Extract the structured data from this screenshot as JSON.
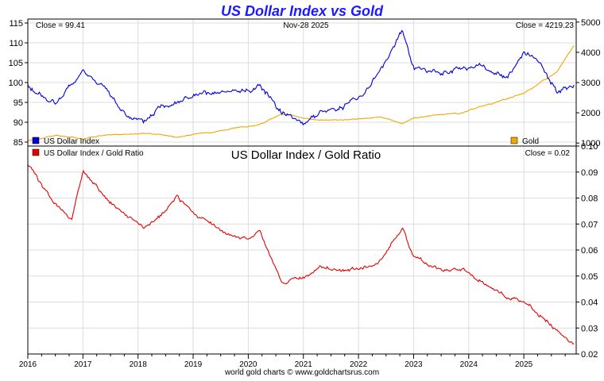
{
  "colors": {
    "title": "#1a1aff",
    "usd": "#0000dd",
    "gold": "#f0a800",
    "ratio": "#e60000",
    "grid": "#dcdcdc",
    "axis": "#000000"
  },
  "chart_data": [
    {
      "type": "line",
      "title": "US Dollar Index vs Gold",
      "date_label": "Nov-28  2025",
      "left_close_label": "Close = 99.41",
      "right_close_label": "Close = 4219.23",
      "x": [
        2016.0,
        2016.5,
        2017.0,
        2017.3,
        2017.7,
        2018.1,
        2018.4,
        2018.7,
        2019.0,
        2019.5,
        2020.0,
        2020.2,
        2020.6,
        2021.0,
        2021.3,
        2021.7,
        2022.0,
        2022.4,
        2022.8,
        2023.0,
        2023.5,
        2023.9,
        2024.2,
        2024.7,
        2025.0,
        2025.3,
        2025.6,
        2025.91
      ],
      "x_tick_labels": [
        "2016",
        "2017",
        "2018",
        "2019",
        "2020",
        "2021",
        "2022",
        "2023",
        "2024",
        "2025"
      ],
      "left_axis": {
        "label": "US Dollar Index",
        "ylim": [
          84,
          116
        ],
        "ticks": [
          "85",
          "90",
          "95",
          "100",
          "105",
          "110",
          "115"
        ]
      },
      "right_axis": {
        "label": "Gold",
        "ylim": [
          900,
          5100
        ],
        "ticks": [
          "1000",
          "2000",
          "3000",
          "4000",
          "5000"
        ]
      },
      "series": [
        {
          "name": "US Dollar Index",
          "axis": "left",
          "values": [
            99.0,
            94.5,
            102.5,
            100.0,
            93.0,
            89.5,
            94.0,
            95.5,
            96.5,
            97.0,
            98.0,
            99.5,
            93.0,
            90.0,
            92.5,
            94.0,
            96.0,
            103.0,
            113.0,
            104.0,
            102.0,
            103.5,
            104.0,
            101.0,
            108.0,
            104.0,
            97.5,
            99.41
          ]
        },
        {
          "name": "Gold",
          "axis": "right",
          "values": [
            1080,
            1250,
            1150,
            1250,
            1280,
            1330,
            1290,
            1200,
            1280,
            1420,
            1550,
            1600,
            1950,
            1850,
            1750,
            1780,
            1800,
            1850,
            1650,
            1830,
            1950,
            1990,
            2200,
            2450,
            2650,
            3000,
            3350,
            4219.23
          ]
        }
      ]
    },
    {
      "type": "line",
      "title": "US Dollar Index / Gold Ratio",
      "close_label": "Close = 0.02",
      "x": [
        2016.0,
        2016.4,
        2016.8,
        2017.0,
        2017.4,
        2017.8,
        2018.1,
        2018.5,
        2018.7,
        2019.0,
        2019.3,
        2019.6,
        2020.0,
        2020.2,
        2020.6,
        2021.0,
        2021.3,
        2021.7,
        2022.0,
        2022.4,
        2022.8,
        2023.0,
        2023.5,
        2023.9,
        2024.2,
        2024.7,
        2025.0,
        2025.3,
        2025.6,
        2025.91
      ],
      "y_axis": {
        "ylim": [
          0.02,
          0.1
        ],
        "ticks": [
          "0.02",
          "0.03",
          "0.04",
          "0.05",
          "0.06",
          "0.07",
          "0.08",
          "0.09",
          "0.10"
        ]
      },
      "series": [
        {
          "name": "US Dollar Index / Gold Ratio",
          "values": [
            0.093,
            0.08,
            0.072,
            0.09,
            0.08,
            0.073,
            0.068,
            0.075,
            0.08,
            0.075,
            0.07,
            0.066,
            0.064,
            0.068,
            0.048,
            0.049,
            0.054,
            0.052,
            0.053,
            0.056,
            0.068,
            0.057,
            0.052,
            0.053,
            0.048,
            0.042,
            0.04,
            0.035,
            0.029,
            0.024
          ]
        }
      ]
    }
  ],
  "footer": "world gold charts © www.goldchartsrus.com"
}
